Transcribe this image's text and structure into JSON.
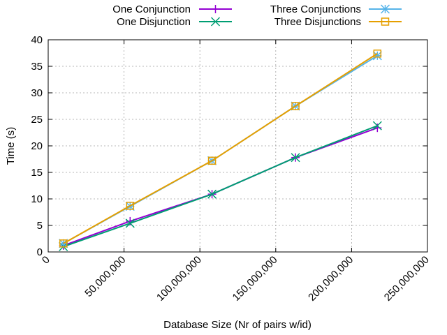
{
  "chart_data": {
    "type": "line",
    "title": "",
    "xlabel": "Database Size (Nr of pairs w/id)",
    "ylabel": "Time (s)",
    "xlim": [
      0,
      250000000
    ],
    "ylim": [
      0,
      40
    ],
    "x_ticks": [
      0,
      50000000,
      100000000,
      150000000,
      200000000,
      250000000
    ],
    "x_tick_labels": [
      "0",
      "50,000,000",
      "100,000,000",
      "150,000,000",
      "200,000,000",
      "250,000,000"
    ],
    "y_ticks": [
      0,
      5,
      10,
      15,
      20,
      25,
      30,
      35,
      40
    ],
    "y_tick_labels": [
      "0",
      "5",
      "10",
      "15",
      "20",
      "25",
      "30",
      "35",
      "40"
    ],
    "grid": true,
    "legend_position": "top, outside plot",
    "x": [
      10000000,
      54000000,
      108000000,
      163000000,
      217000000
    ],
    "series": [
      {
        "name": "One Conjunction",
        "color": "#9400d3",
        "marker": "plus",
        "values": [
          1.2,
          5.8,
          10.9,
          17.8,
          23.4
        ]
      },
      {
        "name": "One Disjunction",
        "color": "#009e73",
        "marker": "cross",
        "values": [
          1.0,
          5.4,
          10.9,
          17.8,
          23.8
        ]
      },
      {
        "name": "Three Conjunctions",
        "color": "#56b4e9",
        "marker": "asterisk",
        "values": [
          1.6,
          8.6,
          17.2,
          27.5,
          37.0
        ]
      },
      {
        "name": "Three Disjunctions",
        "color": "#e69f00",
        "marker": "square",
        "values": [
          1.6,
          8.7,
          17.2,
          27.5,
          37.4
        ]
      }
    ]
  }
}
